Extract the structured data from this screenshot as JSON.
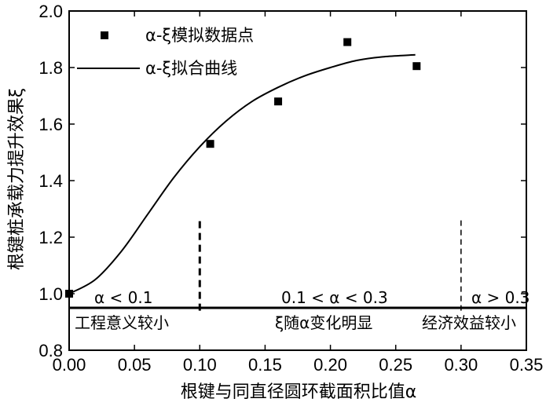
{
  "chart_data": {
    "type": "scatter",
    "xlabel": "根键与同直径圆环截面积比值α",
    "ylabel": "根键桩承载力提升效果ξ",
    "xlim": [
      0.0,
      0.35
    ],
    "ylim": [
      0.8,
      2.0
    ],
    "x_ticks": [
      "0.00",
      "0.05",
      "0.10",
      "0.15",
      "0.20",
      "0.25",
      "0.30",
      "0.35"
    ],
    "y_ticks": [
      "0.8",
      "1.0",
      "1.2",
      "1.4",
      "1.6",
      "1.8",
      "2.0"
    ],
    "grid": false,
    "legend_placement": "top-left",
    "series": [
      {
        "name": "α-ξ模拟数据点",
        "kind": "scatter",
        "x": [
          0.0,
          0.108,
          0.16,
          0.213,
          0.266
        ],
        "y": [
          1.0,
          1.53,
          1.68,
          1.89,
          1.805
        ]
      },
      {
        "name": "α-ξ拟合曲线",
        "kind": "line",
        "x": [
          0.0,
          0.02,
          0.04,
          0.06,
          0.08,
          0.1,
          0.12,
          0.14,
          0.16,
          0.18,
          0.2,
          0.22,
          0.24,
          0.265
        ],
        "y": [
          1.0,
          1.05,
          1.15,
          1.28,
          1.41,
          1.52,
          1.61,
          1.68,
          1.73,
          1.77,
          1.8,
          1.825,
          1.838,
          1.845
        ]
      }
    ],
    "reference_lines": {
      "horizontal_y": 0.95,
      "vertical_x": [
        0.1,
        0.3
      ],
      "vertical_y_range": [
        0.94,
        1.27
      ]
    },
    "annotations": {
      "region1_condition": "α < 0.1",
      "region2_condition": "0.1 < α < 0.3",
      "region3_condition": "α > 0.3",
      "region1_desc": "工程意义较小",
      "region2_desc": "ξ随α变化明显",
      "region3_desc": "经济效益较小"
    }
  }
}
